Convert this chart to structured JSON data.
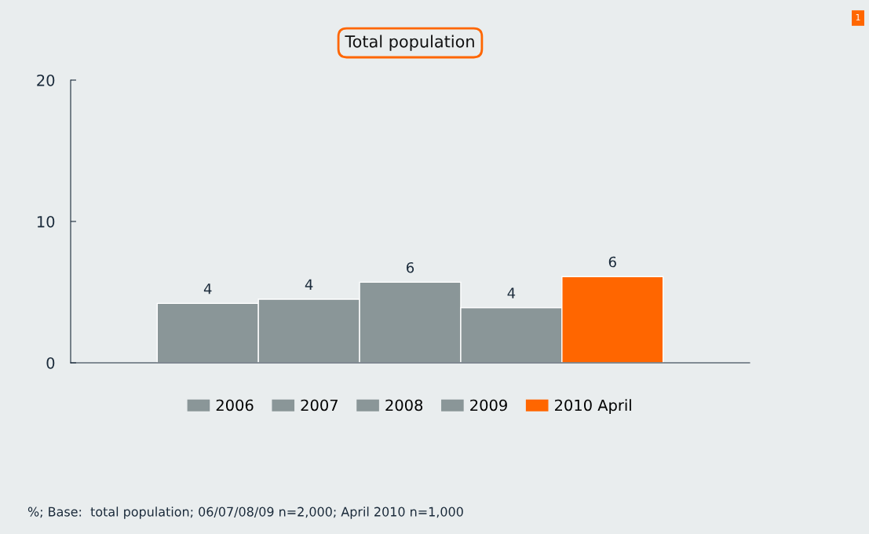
{
  "chart_data": {
    "type": "bar",
    "title": "Total population",
    "categories": [
      null
    ],
    "series": [
      {
        "name": "2006",
        "color": "#8a9698",
        "values": [
          4.2
        ],
        "value_labels": [
          "4"
        ]
      },
      {
        "name": "2007",
        "color": "#8a9698",
        "values": [
          4.5
        ],
        "value_labels": [
          "4"
        ]
      },
      {
        "name": "2008",
        "color": "#8a9698",
        "values": [
          5.7
        ],
        "value_labels": [
          "6"
        ]
      },
      {
        "name": "2009",
        "color": "#8a9698",
        "values": [
          3.9
        ],
        "value_labels": [
          "4"
        ]
      },
      {
        "name": "2010 April",
        "color": "#ff6600",
        "values": [
          6.1
        ],
        "value_labels": [
          "6"
        ]
      }
    ],
    "ylim": [
      0,
      20
    ],
    "yticks": [
      0,
      10,
      20
    ],
    "grid": false,
    "legend": "bottom",
    "annotations": [
      "%; Base:  total population; 06/07/08/09 n=2,000; April 2010 n=1,000",
      "1"
    ]
  }
}
